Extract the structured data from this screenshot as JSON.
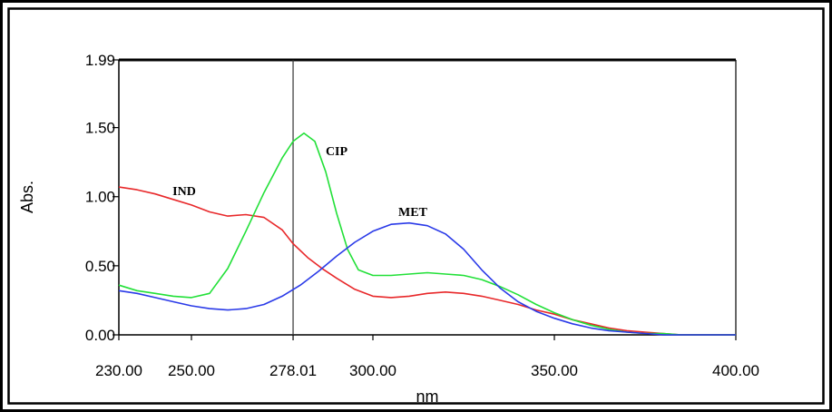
{
  "chart_data": {
    "type": "line",
    "title": "",
    "xlabel": "nm",
    "ylabel": "Abs.",
    "xlim": [
      230.0,
      400.0
    ],
    "ylim": [
      0.0,
      1.99
    ],
    "x_ticks": [
      230.0,
      250.0,
      278.01,
      300.0,
      350.0,
      400.0
    ],
    "x_tick_labels": [
      "230.00",
      "250.00",
      "278.01",
      "300.00",
      "350.00",
      "400.00"
    ],
    "y_ticks": [
      0.0,
      0.5,
      1.0,
      1.5,
      1.99
    ],
    "y_tick_labels": [
      "0.00",
      "0.50",
      "1.00",
      "1.50",
      "1.99"
    ],
    "marker_line_x": 278.01,
    "grid": false,
    "series": [
      {
        "name": "IND",
        "color": "#e8282a",
        "label_at": [
          248.0,
          1.01
        ],
        "x": [
          230,
          235,
          240,
          245,
          250,
          255,
          260,
          265,
          270,
          275,
          278,
          282,
          286,
          290,
          295,
          300,
          305,
          310,
          315,
          320,
          325,
          330,
          335,
          340,
          345,
          350,
          355,
          360,
          365,
          370,
          375,
          380,
          385,
          390,
          395,
          400
        ],
        "y": [
          1.07,
          1.05,
          1.02,
          0.98,
          0.94,
          0.89,
          0.86,
          0.87,
          0.85,
          0.76,
          0.66,
          0.56,
          0.48,
          0.41,
          0.33,
          0.28,
          0.27,
          0.28,
          0.3,
          0.31,
          0.3,
          0.28,
          0.25,
          0.22,
          0.18,
          0.15,
          0.11,
          0.08,
          0.05,
          0.03,
          0.02,
          0.01,
          0.0,
          0.0,
          0.0,
          0.0
        ]
      },
      {
        "name": "CIP",
        "color": "#22e038",
        "label_at": [
          290.0,
          1.3
        ],
        "x": [
          230,
          235,
          240,
          245,
          250,
          255,
          260,
          265,
          270,
          275,
          278,
          281,
          284,
          287,
          290,
          293,
          296,
          300,
          305,
          310,
          315,
          320,
          325,
          330,
          335,
          340,
          345,
          350,
          355,
          360,
          365,
          370,
          375,
          380,
          385,
          390,
          395,
          400
        ],
        "y": [
          0.36,
          0.32,
          0.3,
          0.28,
          0.27,
          0.3,
          0.48,
          0.75,
          1.03,
          1.28,
          1.4,
          1.46,
          1.4,
          1.18,
          0.88,
          0.62,
          0.47,
          0.43,
          0.43,
          0.44,
          0.45,
          0.44,
          0.43,
          0.4,
          0.35,
          0.29,
          0.22,
          0.16,
          0.11,
          0.07,
          0.04,
          0.02,
          0.01,
          0.01,
          0.0,
          0.0,
          0.0,
          0.0
        ]
      },
      {
        "name": "MET",
        "color": "#2a3ae8",
        "label_at": [
          311.0,
          0.86
        ],
        "x": [
          230,
          235,
          240,
          245,
          250,
          255,
          260,
          265,
          270,
          275,
          280,
          285,
          290,
          295,
          300,
          305,
          310,
          315,
          320,
          325,
          330,
          335,
          340,
          345,
          350,
          355,
          360,
          365,
          370,
          375,
          380,
          385,
          390,
          395,
          400
        ],
        "y": [
          0.32,
          0.3,
          0.27,
          0.24,
          0.21,
          0.19,
          0.18,
          0.19,
          0.22,
          0.28,
          0.36,
          0.46,
          0.57,
          0.67,
          0.75,
          0.8,
          0.81,
          0.79,
          0.73,
          0.62,
          0.47,
          0.34,
          0.24,
          0.17,
          0.12,
          0.08,
          0.05,
          0.03,
          0.02,
          0.01,
          0.0,
          0.0,
          0.0,
          0.0,
          0.0
        ]
      }
    ]
  }
}
